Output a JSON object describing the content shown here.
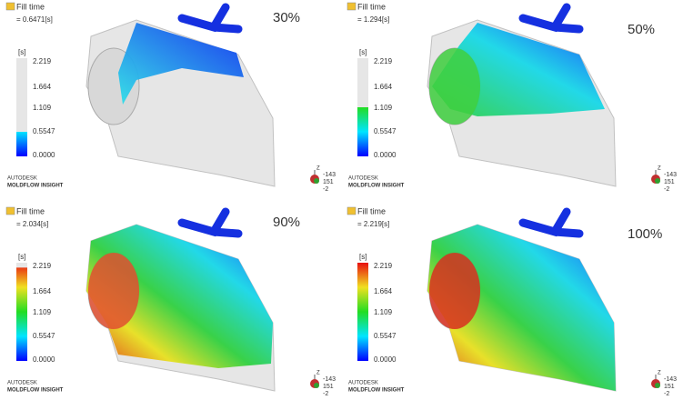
{
  "panels": [
    {
      "title": "Fill time",
      "value": "= 0.6471[s]",
      "unit": "[s]",
      "scale": [
        "2.219",
        "1.664",
        "1.109",
        "0.5547",
        "0.0000"
      ],
      "percent": "30%",
      "brand": "AUTODESK",
      "product": "MOLDFLOW INSIGHT",
      "axis_label": "Z",
      "coords": [
        "-143",
        "151",
        "-2"
      ]
    },
    {
      "title": "Fill time",
      "value": "= 1.294[s]",
      "unit": "[s]",
      "scale": [
        "2.219",
        "1.664",
        "1.109",
        "0.5547",
        "0.0000"
      ],
      "percent": "50%",
      "brand": "AUTODESK",
      "product": "MOLDFLOW INSIGHT",
      "axis_label": "Z",
      "coords": [
        "-143",
        "151",
        "-2"
      ]
    },
    {
      "title": "Fill time",
      "value": "= 2.034[s]",
      "unit": "[s]",
      "scale": [
        "2.219",
        "1.664",
        "1.109",
        "0.5547",
        "0.0000"
      ],
      "percent": "90%",
      "brand": "AUTODESK",
      "product": "MOLDFLOW INSIGHT",
      "axis_label": "Z",
      "coords": [
        "-143",
        "151",
        "-2"
      ]
    },
    {
      "title": "Fill time",
      "value": "= 2.219[s]",
      "unit": "[s]",
      "scale": [
        "2.219",
        "1.664",
        "1.109",
        "0.5547",
        "0.0000"
      ],
      "percent": "100%",
      "brand": "AUTODESK",
      "product": "MOLDFLOW INSIGHT",
      "axis_label": "Z",
      "coords": [
        "-143",
        "151",
        "-2"
      ]
    }
  ]
}
